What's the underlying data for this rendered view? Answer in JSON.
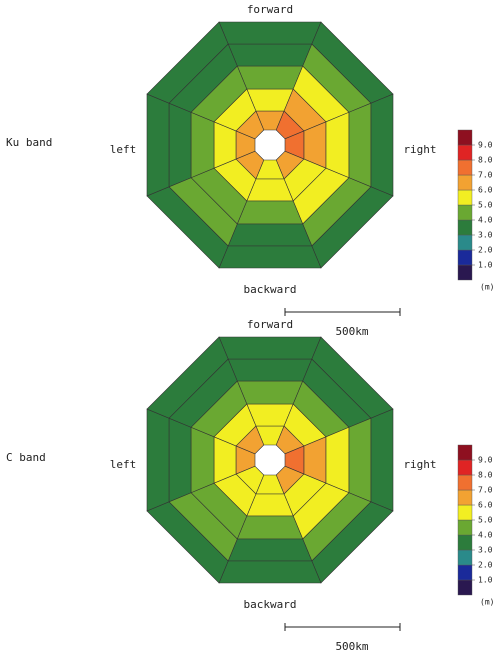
{
  "chart_data": [
    {
      "type": "octagon-heatmap",
      "label": "Ku band",
      "directions": {
        "forward": "forward",
        "right": "right",
        "backward": "backward",
        "left": "left"
      },
      "values": [
        [
          6.5,
          5.5,
          4.5,
          3.5,
          3.5
        ],
        [
          7.5,
          6.5,
          5.5,
          4.5,
          3.5
        ],
        [
          7.5,
          6.5,
          5.5,
          4.5,
          3.5
        ],
        [
          6.5,
          5.5,
          5.5,
          4.5,
          3.5
        ],
        [
          5.5,
          5.5,
          4.5,
          3.5,
          3.5
        ],
        [
          6.5,
          5.5,
          4.5,
          4.5,
          3.5
        ],
        [
          6.5,
          5.5,
          4.5,
          3.5,
          3.5
        ],
        [
          6.5,
          5.5,
          4.5,
          3.5,
          3.5
        ]
      ],
      "colorbar": {
        "colors": [
          "#2a1850",
          "#1a2a9a",
          "#2a8a8a",
          "#2c7c3c",
          "#6aa832",
          "#f2ee22",
          "#f2a232",
          "#f07030",
          "#e02424",
          "#8e1020"
        ],
        "ticks": [
          {
            "value": 1,
            "label": "1.0"
          },
          {
            "value": 2,
            "label": "2.0"
          },
          {
            "value": 3,
            "label": "3.0"
          },
          {
            "value": 4,
            "label": "4.0"
          },
          {
            "value": 5,
            "label": "5.0"
          },
          {
            "value": 6,
            "label": "6.0"
          },
          {
            "value": 7,
            "label": "7.0"
          },
          {
            "value": 8,
            "label": "8.0"
          },
          {
            "value": 9,
            "label": "9.0"
          }
        ],
        "unit": "(m)"
      },
      "scale_bar": "500km"
    },
    {
      "type": "octagon-heatmap",
      "label": "C band",
      "directions": {
        "forward": "forward",
        "right": "right",
        "backward": "backward",
        "left": "left"
      },
      "values": [
        [
          5.5,
          5.5,
          4.5,
          3.5,
          3.5
        ],
        [
          6.5,
          5.5,
          4.5,
          3.5,
          3.5
        ],
        [
          7.5,
          6.5,
          5.5,
          4.5,
          3.5
        ],
        [
          6.5,
          5.5,
          5.5,
          4.5,
          3.5
        ],
        [
          5.5,
          5.5,
          4.5,
          3.5,
          3.5
        ],
        [
          5.5,
          5.5,
          4.5,
          4.5,
          3.5
        ],
        [
          6.5,
          5.5,
          4.5,
          3.5,
          3.5
        ],
        [
          6.5,
          5.5,
          4.5,
          3.5,
          3.5
        ]
      ],
      "colorbar": {
        "colors": [
          "#2a1850",
          "#1a2a9a",
          "#2a8a8a",
          "#2c7c3c",
          "#6aa832",
          "#f2ee22",
          "#f2a232",
          "#f07030",
          "#e02424",
          "#8e1020"
        ],
        "ticks": [
          {
            "value": 1,
            "label": "1.0"
          },
          {
            "value": 2,
            "label": "2.0"
          },
          {
            "value": 3,
            "label": "3.0"
          },
          {
            "value": 4,
            "label": "4.0"
          },
          {
            "value": 5,
            "label": "5.0"
          },
          {
            "value": 6,
            "label": "6.0"
          },
          {
            "value": 7,
            "label": "7.0"
          },
          {
            "value": 8,
            "label": "8.0"
          },
          {
            "value": 9,
            "label": "9.0"
          }
        ],
        "unit": "(m)"
      },
      "scale_bar": "500km"
    }
  ]
}
